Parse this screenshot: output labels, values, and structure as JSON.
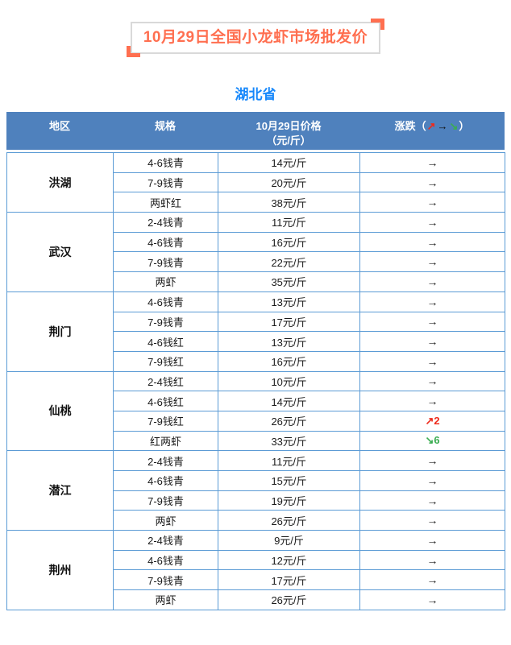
{
  "page": {
    "title": "10月29日全国小龙虾市场批发价",
    "province": "湖北省"
  },
  "colors": {
    "header_bg": "#4F81BD",
    "table_border": "#5B9BD5",
    "title_orange": "#FF6F50",
    "province_blue": "#1788FB",
    "up_red": "#EE2B1C",
    "down_green": "#3BAD52"
  },
  "table": {
    "headers": {
      "region": "地区",
      "spec": "规格",
      "price_line1": "10月29日价格",
      "price_line2": "（元/斤）",
      "change_prefix": "涨跌（",
      "change_up_icon": "↗",
      "change_flat_icon": "→",
      "change_down_icon": "↘",
      "change_suffix": "）"
    },
    "groups": [
      {
        "region": "洪湖",
        "rows": [
          {
            "spec": "4-6钱青",
            "price": "14元/斤",
            "change": {
              "dir": "flat",
              "label": "→"
            }
          },
          {
            "spec": "7-9钱青",
            "price": "20元/斤",
            "change": {
              "dir": "flat",
              "label": "→"
            }
          },
          {
            "spec": "两虾红",
            "price": "38元/斤",
            "change": {
              "dir": "flat",
              "label": "→"
            }
          }
        ]
      },
      {
        "region": "武汉",
        "rows": [
          {
            "spec": "2-4钱青",
            "price": "11元/斤",
            "change": {
              "dir": "flat",
              "label": "→"
            }
          },
          {
            "spec": "4-6钱青",
            "price": "16元/斤",
            "change": {
              "dir": "flat",
              "label": "→"
            }
          },
          {
            "spec": "7-9钱青",
            "price": "22元/斤",
            "change": {
              "dir": "flat",
              "label": "→"
            }
          },
          {
            "spec": "两虾",
            "price": "35元/斤",
            "change": {
              "dir": "flat",
              "label": "→"
            }
          }
        ]
      },
      {
        "region": "荆门",
        "rows": [
          {
            "spec": "4-6钱青",
            "price": "13元/斤",
            "change": {
              "dir": "flat",
              "label": "→"
            }
          },
          {
            "spec": "7-9钱青",
            "price": "17元/斤",
            "change": {
              "dir": "flat",
              "label": "→"
            }
          },
          {
            "spec": "4-6钱红",
            "price": "13元/斤",
            "change": {
              "dir": "flat",
              "label": "→"
            }
          },
          {
            "spec": "7-9钱红",
            "price": "16元/斤",
            "change": {
              "dir": "flat",
              "label": "→"
            }
          }
        ]
      },
      {
        "region": "仙桃",
        "rows": [
          {
            "spec": "2-4钱红",
            "price": "10元/斤",
            "change": {
              "dir": "flat",
              "label": "→"
            }
          },
          {
            "spec": "4-6钱红",
            "price": "14元/斤",
            "change": {
              "dir": "flat",
              "label": "→"
            }
          },
          {
            "spec": "7-9钱红",
            "price": "26元/斤",
            "change": {
              "dir": "up",
              "label": "↗2"
            }
          },
          {
            "spec": "红两虾",
            "price": "33元/斤",
            "change": {
              "dir": "down",
              "label": "↘6"
            }
          }
        ]
      },
      {
        "region": "潜江",
        "rows": [
          {
            "spec": "2-4钱青",
            "price": "11元/斤",
            "change": {
              "dir": "flat",
              "label": "→"
            }
          },
          {
            "spec": "4-6钱青",
            "price": "15元/斤",
            "change": {
              "dir": "flat",
              "label": "→"
            }
          },
          {
            "spec": "7-9钱青",
            "price": "19元/斤",
            "change": {
              "dir": "flat",
              "label": "→"
            }
          },
          {
            "spec": "两虾",
            "price": "26元/斤",
            "change": {
              "dir": "flat",
              "label": "→"
            }
          }
        ]
      },
      {
        "region": "荆州",
        "rows": [
          {
            "spec": "2-4钱青",
            "price": "9元/斤",
            "change": {
              "dir": "flat",
              "label": "→"
            }
          },
          {
            "spec": "4-6钱青",
            "price": "12元/斤",
            "change": {
              "dir": "flat",
              "label": "→"
            }
          },
          {
            "spec": "7-9钱青",
            "price": "17元/斤",
            "change": {
              "dir": "flat",
              "label": "→"
            }
          },
          {
            "spec": "两虾",
            "price": "26元/斤",
            "change": {
              "dir": "flat",
              "label": "→"
            }
          }
        ]
      }
    ]
  }
}
